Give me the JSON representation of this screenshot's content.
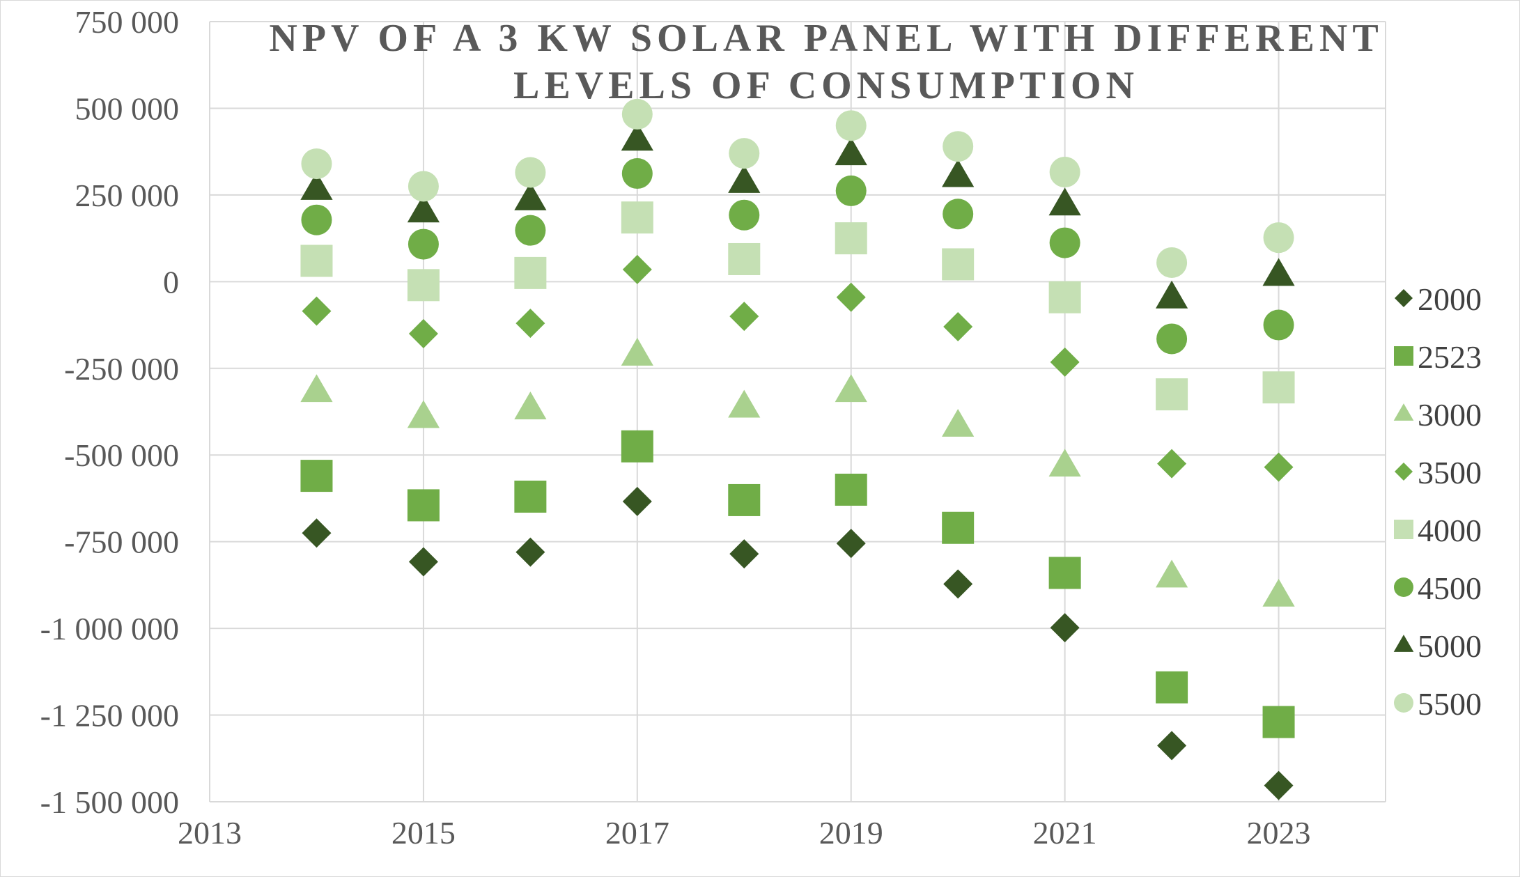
{
  "chart_data": {
    "type": "scatter",
    "title_lines": [
      "NPV OF A 3 KW SOLAR PANEL WITH DIFFERENT",
      "LEVELS OF CONSUMPTION"
    ],
    "xlabel": "",
    "ylabel": "",
    "xlim": [
      2013,
      2024
    ],
    "ylim": [
      -1500000,
      750000
    ],
    "x_ticks": [
      2013,
      2015,
      2017,
      2019,
      2021,
      2023
    ],
    "x_tick_labels": [
      "2013",
      "2015",
      "2017",
      "2019",
      "2021",
      "2023"
    ],
    "y_ticks": [
      750000,
      500000,
      250000,
      0,
      -250000,
      -500000,
      -750000,
      -1000000,
      -1250000,
      -1500000
    ],
    "y_tick_labels": [
      "750 000",
      "500 000",
      "250 000",
      "0",
      "-250 000",
      "-500 000",
      "-750 000",
      "-1 000 000",
      "-1 250 000",
      "-1 500 000"
    ],
    "grid": "vertical",
    "legend_position": "right",
    "x": [
      2014,
      2015,
      2016,
      2017,
      2018,
      2019,
      2020,
      2021,
      2022,
      2023
    ],
    "series": [
      {
        "name": "2000",
        "marker": "diamond",
        "color": "#375623",
        "values": [
          -725000,
          -808000,
          -780000,
          -634000,
          -785000,
          -755000,
          -872000,
          -998000,
          -1338000,
          -1453000
        ]
      },
      {
        "name": "2523",
        "marker": "square",
        "color": "#70ad47",
        "values": [
          -560000,
          -645000,
          -620000,
          -475000,
          -630000,
          -600000,
          -710000,
          -840000,
          -1170000,
          -1270000
        ]
      },
      {
        "name": "3000",
        "marker": "triangle",
        "color": "#a9d18e",
        "values": [
          -315000,
          -390000,
          -365000,
          -210000,
          -360000,
          -315000,
          -415000,
          -530000,
          -850000,
          -905000
        ]
      },
      {
        "name": "3500",
        "marker": "diamond",
        "color": "#70ad47",
        "values": [
          -85000,
          -150000,
          -120000,
          35000,
          -100000,
          -45000,
          -130000,
          -232000,
          -525000,
          -535000
        ]
      },
      {
        "name": "4000",
        "marker": "square",
        "color": "#c5e0b4",
        "values": [
          60000,
          -10000,
          25000,
          185000,
          65000,
          125000,
          50000,
          -45000,
          -325000,
          -305000
        ]
      },
      {
        "name": "4500",
        "marker": "circle",
        "color": "#70ad47",
        "values": [
          178000,
          108000,
          148000,
          312000,
          192000,
          262000,
          195000,
          112000,
          -165000,
          -125000
        ]
      },
      {
        "name": "5000",
        "marker": "triangle",
        "color": "#375623",
        "values": [
          268000,
          203000,
          238000,
          410000,
          288000,
          368000,
          305000,
          223000,
          -45000,
          20000
        ]
      },
      {
        "name": "5500",
        "marker": "circle",
        "color": "#c5e0b4",
        "values": [
          340000,
          275000,
          315000,
          483000,
          370000,
          450000,
          390000,
          316000,
          55000,
          127000
        ]
      }
    ]
  }
}
